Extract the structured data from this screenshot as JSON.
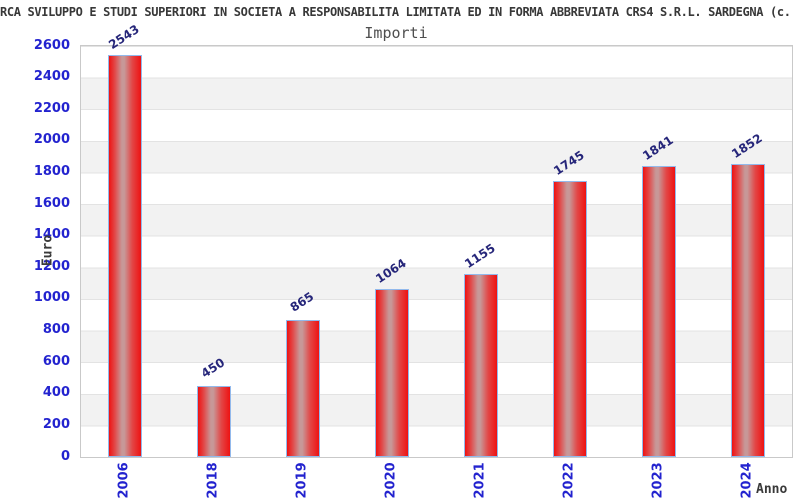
{
  "header": {
    "title": "RCA SVILUPPO E STUDI SUPERIORI IN SOCIETA A RESPONSABILITA LIMITATA ED IN FORMA ABBREVIATA CRS4 S.R.L. SARDEGNA (c.",
    "subtitle": "Importi"
  },
  "chart_data": {
    "type": "bar",
    "title": "Importi",
    "categories": [
      "2006",
      "2018",
      "2019",
      "2020",
      "2021",
      "2022",
      "2023",
      "2024"
    ],
    "values": [
      2543,
      450,
      865,
      1064,
      1155,
      1745,
      1841,
      1852
    ],
    "xlabel": "Anno",
    "ylabel": "Euro",
    "ylim": [
      0,
      2600
    ],
    "ytick_step": 200,
    "yticks": [
      0,
      200,
      400,
      600,
      800,
      1000,
      1200,
      1400,
      1600,
      1800,
      2000,
      2200,
      2400,
      2600
    ],
    "legend": "none",
    "grid": "horizontal-bands-alternating",
    "colors": {
      "bar_fill": "#ee1212",
      "bar_highlight": "#c79898",
      "bar_border": "#92b9ec",
      "tick_label": "#2323cf",
      "value_label": "#26267a",
      "band_gray": "#f2f2f2",
      "plot_border": "#c9c9c9",
      "title_text": "#383838"
    }
  }
}
